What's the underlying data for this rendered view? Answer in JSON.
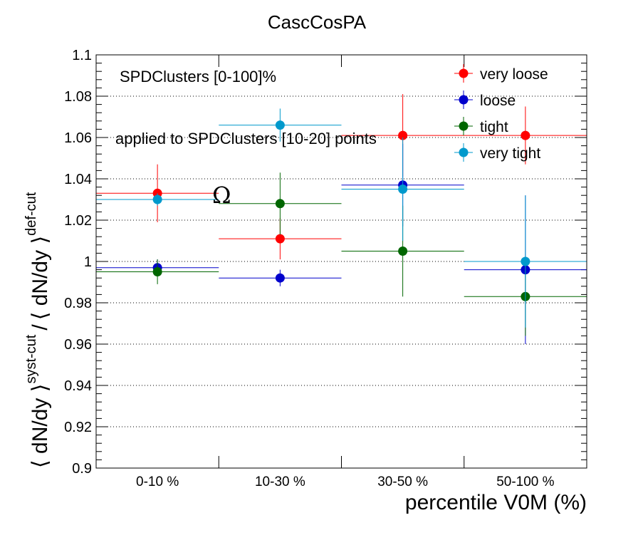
{
  "chart_data": {
    "type": "scatter",
    "title": "CascCosPA",
    "xlabel": "percentile V0M (%)",
    "ylabel": {
      "left": "⟨ dN/dy ⟩",
      "sup_num": "syst-cut",
      "slash": "/",
      "right": "⟨ dN/dy ⟩",
      "sup_den": "def-cut"
    },
    "ylim": [
      0.9,
      1.1
    ],
    "yticks": [
      0.9,
      0.92,
      0.94,
      0.96,
      0.98,
      1,
      1.02,
      1.04,
      1.06,
      1.08,
      1.1
    ],
    "ytick_labels": [
      "0.9",
      "0.92",
      "0.94",
      "0.96",
      "0.98",
      "1",
      "1.02",
      "1.04",
      "1.06",
      "1.08",
      "1.1"
    ],
    "categories": [
      "0-10 %",
      "10-30 %",
      "30-50 %",
      "50-100 %"
    ],
    "grid": "horizontal dotted",
    "legend_position": "top-right",
    "annotations": {
      "selection": "SPDClusters [0-100]%",
      "applied": "applied to SPDClusters [10-20] points",
      "particle": "Ω"
    },
    "series": [
      {
        "name": "very loose",
        "color": "#ff0000",
        "values": [
          1.033,
          1.011,
          1.061,
          1.061
        ],
        "errors": [
          0.014,
          0.01,
          0.02,
          0.014
        ]
      },
      {
        "name": "loose",
        "color": "#0000cc",
        "values": [
          0.997,
          0.992,
          1.037,
          0.996
        ],
        "errors": [
          0.004,
          0.004,
          0.02,
          0.036
        ]
      },
      {
        "name": "tight",
        "color": "#006600",
        "values": [
          0.995,
          1.028,
          1.005,
          0.983
        ],
        "errors": [
          0.006,
          0.015,
          0.022,
          0.019
        ]
      },
      {
        "name": "very tight",
        "color": "#0099cc",
        "values": [
          1.03,
          1.066,
          1.035,
          1.0
        ],
        "errors": [
          0.003,
          0.008,
          0.025,
          0.032
        ]
      }
    ]
  }
}
